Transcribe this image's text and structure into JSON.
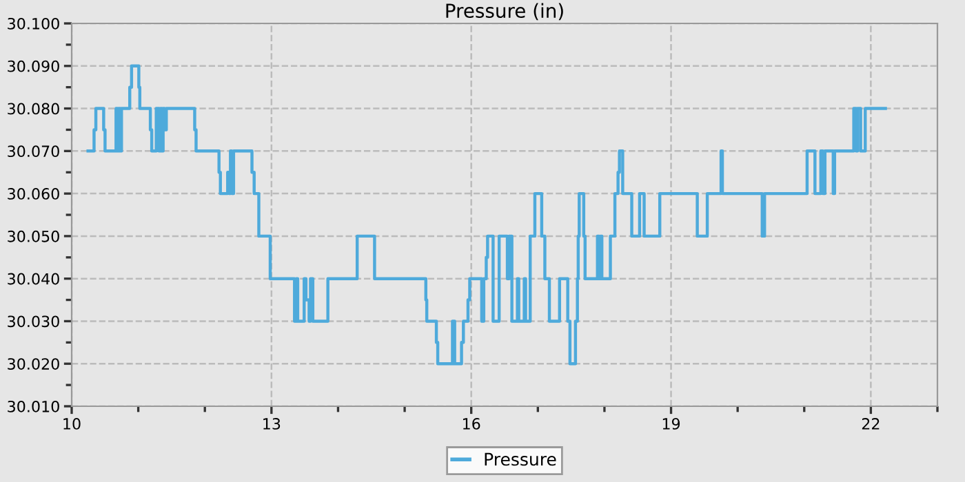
{
  "chart_data": {
    "type": "step",
    "title": "Pressure (in)",
    "series": [
      {
        "name": "Pressure",
        "color": "#4eaadb",
        "x": [
          10.245,
          10.336,
          10.363,
          10.48,
          10.501,
          10.666,
          10.687,
          10.707,
          10.728,
          10.748,
          10.872,
          10.899,
          11.008,
          11.023,
          11.181,
          11.202,
          11.27,
          11.311,
          11.332,
          11.353,
          11.373,
          11.394,
          11.421,
          11.847,
          11.868,
          12.212,
          12.233,
          12.342,
          12.363,
          12.384,
          12.404,
          12.431,
          12.707,
          12.74,
          12.81,
          12.981,
          13.346,
          13.373,
          13.394,
          13.491,
          13.518,
          13.565,
          13.586,
          13.621,
          13.847,
          14.287,
          14.548,
          15.318,
          15.332,
          15.476,
          15.497,
          15.718,
          15.751,
          15.854,
          15.882,
          15.951,
          15.977,
          16.157,
          16.188,
          16.225,
          16.245,
          16.328,
          16.419,
          16.542,
          16.569,
          16.61,
          16.693,
          16.713,
          16.796,
          16.816,
          16.885,
          16.955,
          17.058,
          17.105,
          17.173,
          17.326,
          17.449,
          17.482,
          17.565,
          17.594,
          17.606,
          17.621,
          17.689,
          17.709,
          17.895,
          17.92,
          17.94,
          17.961,
          18.089,
          18.157,
          18.204,
          18.225,
          18.274,
          18.41,
          18.528,
          18.596,
          18.831,
          19.394,
          19.544,
          19.751,
          19.771,
          20.369,
          20.404,
          21.043,
          21.161,
          21.249,
          21.28,
          21.311,
          21.435,
          21.456,
          21.744,
          21.779,
          21.8,
          21.847,
          21.916,
          22.219
        ],
        "values": [
          30.07,
          30.075,
          30.08,
          30.075,
          30.07,
          30.08,
          30.07,
          30.08,
          30.07,
          30.08,
          30.085,
          30.09,
          30.085,
          30.08,
          30.075,
          30.07,
          30.08,
          30.07,
          30.08,
          30.07,
          30.08,
          30.075,
          30.08,
          30.075,
          30.07,
          30.065,
          30.06,
          30.065,
          30.06,
          30.07,
          30.06,
          30.07,
          30.065,
          30.06,
          30.05,
          30.04,
          30.03,
          30.04,
          30.03,
          30.04,
          30.035,
          30.03,
          30.04,
          30.03,
          30.04,
          30.05,
          30.04,
          30.035,
          30.03,
          30.025,
          30.02,
          30.03,
          30.02,
          30.025,
          30.03,
          30.035,
          30.04,
          30.03,
          30.04,
          30.045,
          30.05,
          30.03,
          30.05,
          30.04,
          30.05,
          30.03,
          30.04,
          30.03,
          30.04,
          30.03,
          30.05,
          30.06,
          30.05,
          30.04,
          30.03,
          30.04,
          30.03,
          30.02,
          30.03,
          30.04,
          30.05,
          30.06,
          30.05,
          30.04,
          30.05,
          30.04,
          30.05,
          30.04,
          30.05,
          30.06,
          30.065,
          30.07,
          30.06,
          30.05,
          30.06,
          30.05,
          30.06,
          30.05,
          30.06,
          30.07,
          30.06,
          30.05,
          30.06,
          30.07,
          30.06,
          30.07,
          30.06,
          30.07,
          30.06,
          30.07,
          30.08,
          30.07,
          30.08,
          30.07,
          30.08,
          30.08
        ]
      }
    ],
    "xlim": [
      10,
      23
    ],
    "xticks": [
      10,
      {
        "value": 11,
        "label": null
      },
      {
        "value": 12,
        "label": null
      },
      13,
      {
        "value": 14,
        "label": null
      },
      {
        "value": 15,
        "label": null
      },
      16,
      {
        "value": 17,
        "label": null
      },
      {
        "value": 18,
        "label": null
      },
      19,
      {
        "value": 20,
        "label": null
      },
      {
        "value": 21,
        "label": null
      },
      22,
      {
        "value": 23,
        "label": null
      }
    ],
    "ylim": [
      30.01,
      30.1
    ],
    "yticks": [
      {
        "value": 30.01,
        "label": "30.010"
      },
      {
        "value": 30.015,
        "label": null
      },
      {
        "value": 30.02,
        "label": "30.020"
      },
      {
        "value": 30.025,
        "label": null
      },
      {
        "value": 30.03,
        "label": "30.030"
      },
      {
        "value": 30.035,
        "label": null
      },
      {
        "value": 30.04,
        "label": "30.040"
      },
      {
        "value": 30.045,
        "label": null
      },
      {
        "value": 30.05,
        "label": "30.050"
      },
      {
        "value": 30.055,
        "label": null
      },
      {
        "value": 30.06,
        "label": "30.060"
      },
      {
        "value": 30.065,
        "label": null
      },
      {
        "value": 30.07,
        "label": "30.070"
      },
      {
        "value": 30.075,
        "label": null
      },
      {
        "value": 30.08,
        "label": "30.080"
      },
      {
        "value": 30.085,
        "label": null
      },
      {
        "value": 30.09,
        "label": "30.090"
      },
      {
        "value": 30.095,
        "label": null
      },
      {
        "value": 30.1,
        "label": "30.100"
      }
    ],
    "grid": true,
    "legend": "bottom",
    "line_style": "solid",
    "marker": "none"
  }
}
